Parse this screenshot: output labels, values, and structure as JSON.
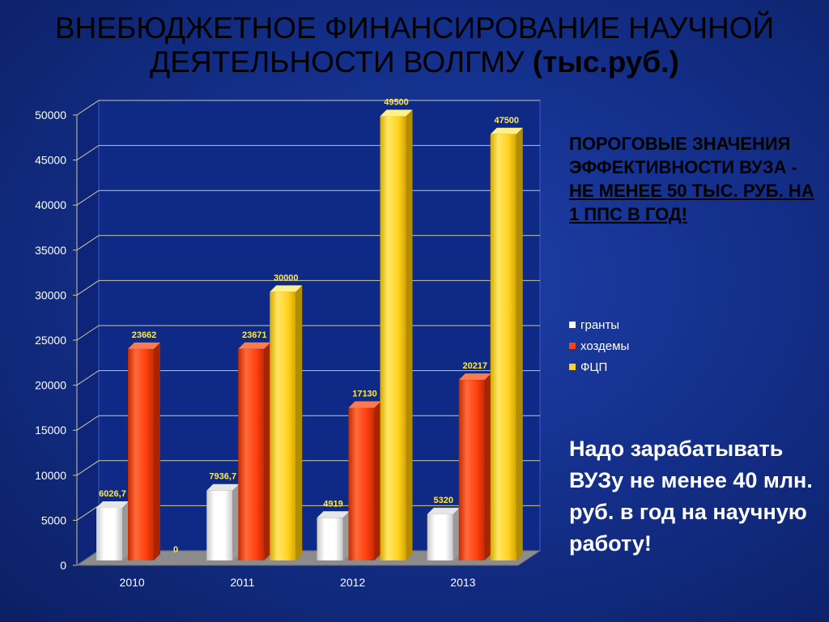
{
  "title": {
    "line1": "ВНЕБЮДЖЕТНОЕ ФИНАНСИРОВАНИЕ НАУЧНОЙ",
    "line2": "ДЕЯТЕЛЬНОСТИ ВОЛГМУ",
    "unit": "(тыс.руб.)"
  },
  "threshold": {
    "prefix": "ПОРОГОВЫЕ ЗНАЧЕНИЯ ЭФФЕКТИВНОСТИ ВУЗА -",
    "emphasis": "НЕ МЕНЕЕ 50 ТЫС. РУБ.  НА 1 ППС В ГОД!"
  },
  "note": "Надо зарабатывать ВУЗу не менее 40 млн. руб. в год на научную работу!",
  "colors": {
    "background": "#14308c",
    "title_text": "#000000",
    "series": [
      "#ffffff",
      "#ff4010",
      "#ffd21f"
    ]
  },
  "chart_data": {
    "type": "bar",
    "categories": [
      "2010",
      "2011",
      "2012",
      "2013"
    ],
    "series": [
      {
        "name": "гранты",
        "values": [
          6026.7,
          7936.7,
          4919,
          5320
        ],
        "labels": [
          "6026,7",
          "7936,7",
          "4919",
          "5320"
        ]
      },
      {
        "name": "хоздемы",
        "values": [
          23662,
          23671,
          17130,
          20217
        ],
        "labels": [
          "23662",
          "23671",
          "17130",
          "20217"
        ]
      },
      {
        "name": "ФЦП",
        "values": [
          0,
          30000,
          49500,
          47500
        ],
        "labels": [
          "0",
          "30000",
          "49500",
          "47500"
        ]
      }
    ],
    "yticks": [
      "0",
      "5000",
      "10000",
      "15000",
      "20000",
      "25000",
      "30000",
      "35000",
      "40000",
      "45000",
      "50000"
    ],
    "ylim": [
      0,
      50000
    ],
    "grid": true,
    "legend_position": "right",
    "style": "3d"
  }
}
